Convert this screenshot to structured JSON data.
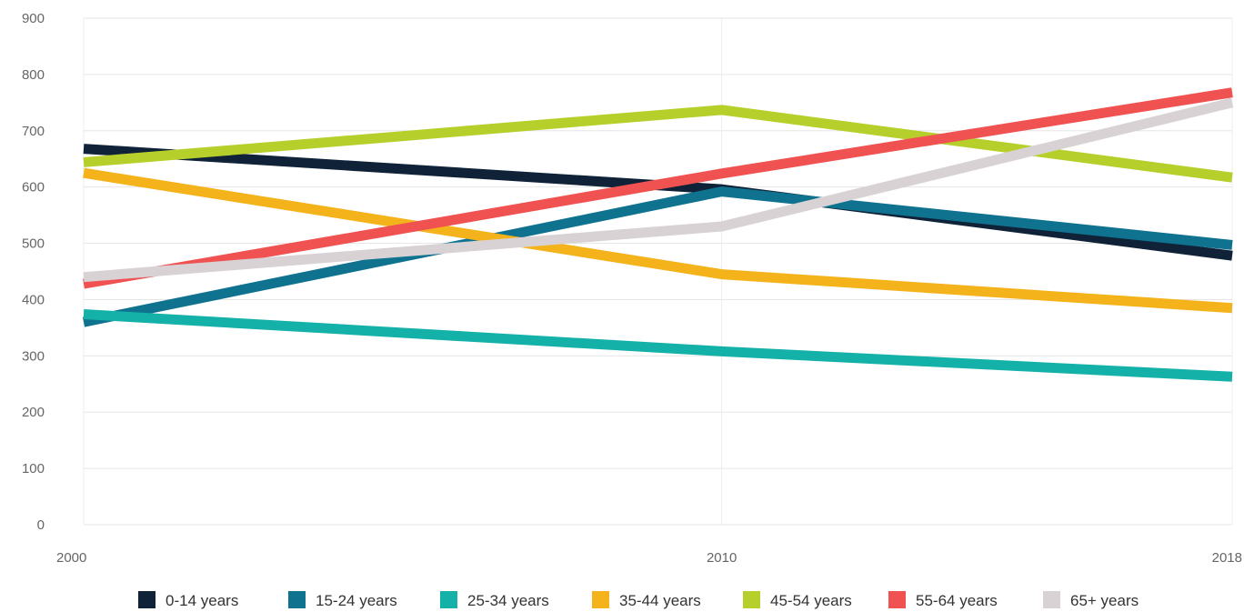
{
  "chart_data": {
    "type": "line",
    "title": "",
    "xlabel": "",
    "ylabel": "",
    "x": [
      "2000",
      "2010",
      "2018"
    ],
    "ylim": [
      0,
      900
    ],
    "yticks": [
      "0",
      "100",
      "200",
      "300",
      "400",
      "500",
      "600",
      "700",
      "800",
      "900"
    ],
    "grid": true,
    "legend_position": "bottom",
    "series": [
      {
        "name": "0-14 years",
        "color": "#0f2238",
        "values": [
          668,
          596,
          478
        ]
      },
      {
        "name": "15-24 years",
        "color": "#0f7390",
        "values": [
          360,
          592,
          497
        ]
      },
      {
        "name": "25-34 years",
        "color": "#14b1a9",
        "values": [
          374,
          308,
          263
        ]
      },
      {
        "name": "35-44 years",
        "color": "#f4b21b",
        "values": [
          625,
          445,
          385
        ]
      },
      {
        "name": "45-54 years",
        "color": "#b7cf2b",
        "values": [
          644,
          737,
          617
        ]
      },
      {
        "name": "55-64 years",
        "color": "#f05252",
        "values": [
          428,
          624,
          768
        ]
      },
      {
        "name": "65+ years",
        "color": "#d9d2d5",
        "values": [
          440,
          530,
          750
        ]
      }
    ]
  }
}
